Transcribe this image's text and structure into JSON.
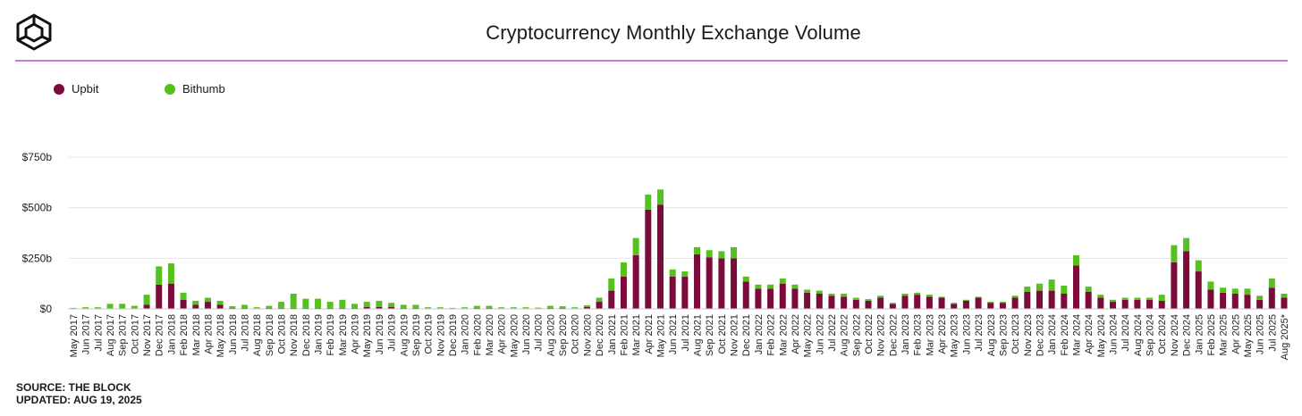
{
  "header": {
    "title": "Cryptocurrency Monthly Exchange Volume",
    "logo_icon": "the-block-cube-logo"
  },
  "footer": {
    "source": "SOURCE: THE BLOCK",
    "updated": "UPDATED: AUG 19, 2025"
  },
  "colors": {
    "upbit": "#7a0b3a",
    "bithumb": "#56c11e",
    "divider": "#c77ad6",
    "grid": "#e6e6e6"
  },
  "chart_data": {
    "type": "bar",
    "stacked": true,
    "title": "Cryptocurrency Monthly Exchange Volume",
    "ylim": [
      0,
      750
    ],
    "yticks": [
      0,
      250,
      500,
      750
    ],
    "ytick_labels": [
      "$0",
      "$250b",
      "$500b",
      "$750b"
    ],
    "grid": true,
    "legend_position": "top-left",
    "categories": [
      "May 2017",
      "Jun 2017",
      "Jul 2017",
      "Aug 2017",
      "Sep 2017",
      "Oct 2017",
      "Nov 2017",
      "Dec 2017",
      "Jan 2018",
      "Feb 2018",
      "Mar 2018",
      "Apr 2018",
      "May 2018",
      "Jun 2018",
      "Jul 2018",
      "Aug 2018",
      "Sep 2018",
      "Oct 2018",
      "Nov 2018",
      "Dec 2018",
      "Jan 2019",
      "Feb 2019",
      "Mar 2019",
      "Apr 2019",
      "May 2019",
      "Jun 2019",
      "Jul 2019",
      "Aug 2019",
      "Sep 2019",
      "Oct 2019",
      "Nov 2019",
      "Dec 2019",
      "Jan 2020",
      "Feb 2020",
      "Mar 2020",
      "Apr 2020",
      "May 2020",
      "Jun 2020",
      "Jul 2020",
      "Aug 2020",
      "Sep 2020",
      "Oct 2020",
      "Nov 2020",
      "Dec 2020",
      "Jan 2021",
      "Feb 2021",
      "Mar 2021",
      "Apr 2021",
      "May 2021",
      "Jun 2021",
      "Jul 2021",
      "Aug 2021",
      "Sep 2021",
      "Oct 2021",
      "Nov 2021",
      "Dec 2021",
      "Jan 2022",
      "Feb 2022",
      "Mar 2022",
      "Apr 2022",
      "May 2022",
      "Jun 2022",
      "Jul 2022",
      "Aug 2022",
      "Sep 2022",
      "Oct 2022",
      "Nov 2022",
      "Dec 2022",
      "Jan 2023",
      "Feb 2023",
      "Mar 2023",
      "Apr 2023",
      "May 2023",
      "Jun 2023",
      "Jul 2023",
      "Aug 2023",
      "Sep 2023",
      "Oct 2023",
      "Nov 2023",
      "Dec 2023",
      "Jan 2024",
      "Feb 2024",
      "Mar 2024",
      "Apr 2024",
      "May 2024",
      "Jun 2024",
      "Jul 2024",
      "Aug 2024",
      "Sep 2024",
      "Oct 2024",
      "Nov 2024",
      "Dec 2024",
      "Jan 2025",
      "Feb 2025",
      "Mar 2025",
      "Apr 2025",
      "May 2025",
      "Jun 2025",
      "Jul 2025",
      "Aug 2025*"
    ],
    "series": [
      {
        "name": "Upbit",
        "values": [
          0,
          0,
          0,
          0,
          0,
          0,
          20,
          120,
          125,
          45,
          20,
          35,
          20,
          5,
          5,
          3,
          5,
          5,
          5,
          5,
          5,
          5,
          5,
          5,
          10,
          10,
          10,
          5,
          5,
          3,
          3,
          2,
          3,
          5,
          5,
          3,
          3,
          3,
          3,
          5,
          5,
          3,
          10,
          35,
          90,
          160,
          265,
          490,
          515,
          160,
          160,
          270,
          255,
          250,
          250,
          135,
          100,
          100,
          125,
          100,
          80,
          75,
          65,
          60,
          45,
          40,
          55,
          25,
          65,
          70,
          60,
          55,
          25,
          40,
          55,
          30,
          30,
          55,
          85,
          90,
          90,
          75,
          215,
          85,
          55,
          35,
          45,
          45,
          45,
          40,
          230,
          285,
          185,
          95,
          80,
          75,
          70,
          45,
          105,
          55
        ]
      },
      {
        "name": "Bithumb",
        "values": [
          5,
          8,
          8,
          25,
          25,
          15,
          50,
          90,
          100,
          35,
          20,
          20,
          20,
          8,
          15,
          5,
          10,
          30,
          70,
          45,
          45,
          30,
          40,
          20,
          25,
          30,
          20,
          15,
          15,
          5,
          5,
          3,
          5,
          10,
          10,
          5,
          5,
          5,
          3,
          10,
          8,
          5,
          8,
          20,
          60,
          70,
          85,
          75,
          75,
          35,
          25,
          35,
          35,
          35,
          55,
          25,
          20,
          20,
          25,
          20,
          15,
          15,
          10,
          15,
          10,
          8,
          10,
          5,
          10,
          10,
          10,
          5,
          5,
          5,
          5,
          5,
          5,
          10,
          25,
          35,
          55,
          40,
          50,
          25,
          15,
          10,
          10,
          10,
          10,
          30,
          85,
          65,
          55,
          40,
          25,
          25,
          30,
          20,
          45,
          20
        ]
      }
    ]
  }
}
